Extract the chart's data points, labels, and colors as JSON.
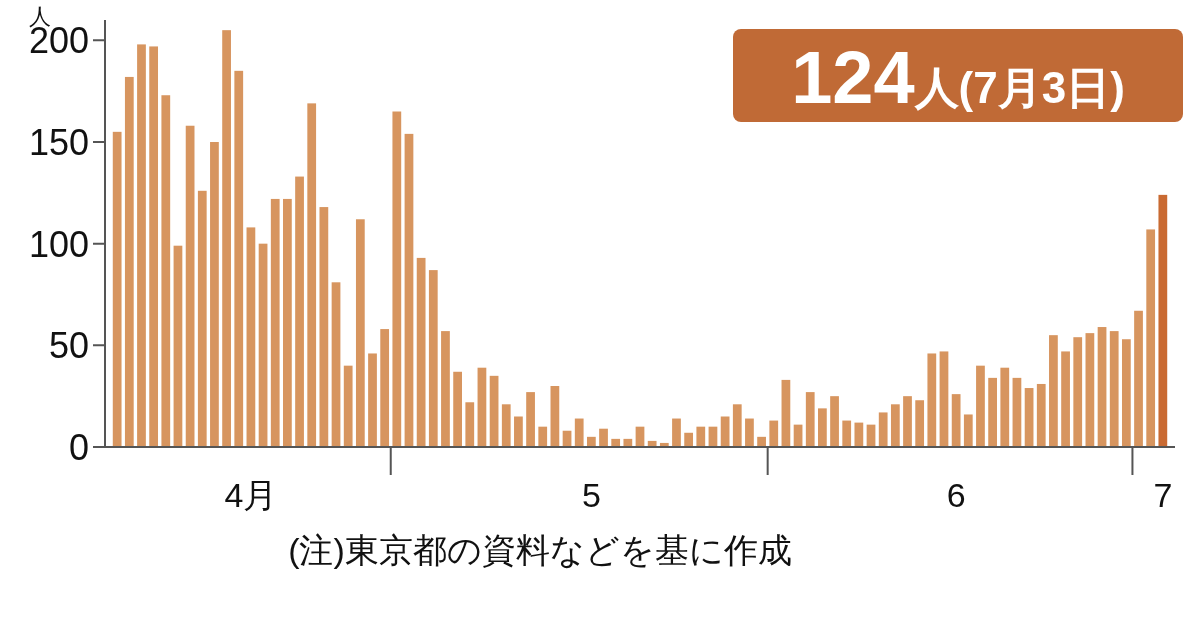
{
  "chart_data": {
    "type": "bar",
    "ylabel": "人",
    "x": [
      "--04-08",
      "--04-09",
      "--04-10",
      "--04-11",
      "--04-12",
      "--04-13",
      "--04-14",
      "--04-15",
      "--04-16",
      "--04-17",
      "--04-18",
      "--04-19",
      "--04-20",
      "--04-21",
      "--04-22",
      "--04-23",
      "--04-24",
      "--04-25",
      "--04-26",
      "--04-27",
      "--04-28",
      "--04-29",
      "--04-30",
      "--05-01",
      "--05-02",
      "--05-03",
      "--05-04",
      "--05-05",
      "--05-06",
      "--05-07",
      "--05-08",
      "--05-09",
      "--05-10",
      "--05-11",
      "--05-12",
      "--05-13",
      "--05-14",
      "--05-15",
      "--05-16",
      "--05-17",
      "--05-18",
      "--05-19",
      "--05-20",
      "--05-21",
      "--05-22",
      "--05-23",
      "--05-24",
      "--05-25",
      "--05-26",
      "--05-27",
      "--05-28",
      "--05-29",
      "--05-30",
      "--05-31",
      "--06-01",
      "--06-02",
      "--06-03",
      "--06-04",
      "--06-05",
      "--06-06",
      "--06-07",
      "--06-08",
      "--06-09",
      "--06-10",
      "--06-11",
      "--06-12",
      "--06-13",
      "--06-14",
      "--06-15",
      "--06-16",
      "--06-17",
      "--06-18",
      "--06-19",
      "--06-20",
      "--06-21",
      "--06-22",
      "--06-23",
      "--06-24",
      "--06-25",
      "--06-26",
      "--06-27",
      "--06-28",
      "--06-29",
      "--06-30",
      "--07-01",
      "--07-02",
      "--07-03"
    ],
    "values": [
      155,
      182,
      198,
      197,
      173,
      99,
      158,
      126,
      150,
      205,
      185,
      108,
      100,
      122,
      122,
      133,
      169,
      118,
      81,
      40,
      112,
      46,
      58,
      165,
      154,
      93,
      87,
      57,
      37,
      22,
      39,
      35,
      21,
      15,
      27,
      10,
      30,
      8,
      14,
      5,
      9,
      4,
      4,
      10,
      3,
      2,
      14,
      7,
      10,
      10,
      15,
      21,
      14,
      5,
      13,
      33,
      11,
      27,
      19,
      25,
      13,
      12,
      11,
      17,
      21,
      25,
      23,
      46,
      47,
      26,
      16,
      40,
      34,
      39,
      34,
      29,
      31,
      55,
      47,
      54,
      56,
      59,
      57,
      53,
      67,
      107,
      124
    ],
    "colors": [
      "#d7955f",
      "#d7955f",
      "#d7955f",
      "#d7955f",
      "#d7955f",
      "#d7955f",
      "#d7955f",
      "#d7955f",
      "#d7955f",
      "#d7955f",
      "#d7955f",
      "#d7955f",
      "#d7955f",
      "#d7955f",
      "#d7955f",
      "#d7955f",
      "#d7955f",
      "#d7955f",
      "#d7955f",
      "#d7955f",
      "#d7955f",
      "#d7955f",
      "#d7955f",
      "#d7955f",
      "#d7955f",
      "#d7955f",
      "#d7955f",
      "#d7955f",
      "#d7955f",
      "#d7955f",
      "#d7955f",
      "#d7955f",
      "#d7955f",
      "#d7955f",
      "#d7955f",
      "#d7955f",
      "#d7955f",
      "#d7955f",
      "#d7955f",
      "#d7955f",
      "#d7955f",
      "#d7955f",
      "#d7955f",
      "#d7955f",
      "#d7955f",
      "#d7955f",
      "#d7955f",
      "#d7955f",
      "#d7955f",
      "#d7955f",
      "#d7955f",
      "#d7955f",
      "#d7955f",
      "#d7955f",
      "#d7955f",
      "#d7955f",
      "#d7955f",
      "#d7955f",
      "#d7955f",
      "#d7955f",
      "#d7955f",
      "#d7955f",
      "#d7955f",
      "#d7955f",
      "#d7955f",
      "#d7955f",
      "#d7955f",
      "#d7955f",
      "#d7955f",
      "#d7955f",
      "#d7955f",
      "#d7955f",
      "#d7955f",
      "#d7955f",
      "#d7955f",
      "#d7955f",
      "#d7955f",
      "#d7955f",
      "#d7955f",
      "#d7955f",
      "#d7955f",
      "#d7955f",
      "#d7955f",
      "#d7955f",
      "#d7955f",
      "#d7955f",
      "#c96a32"
    ],
    "xlim": [
      "--04-07",
      "--07-04"
    ],
    "xticks": [
      {
        "value": "--04-19",
        "label": "4月"
      },
      {
        "value": "--05-17",
        "label": "5"
      },
      {
        "value": "--06-16",
        "label": "6"
      },
      {
        "value": "--07-03",
        "label": "7"
      }
    ],
    "ylim": [
      0,
      210
    ],
    "yticks": [
      0,
      50,
      100,
      150,
      200
    ],
    "grid": false,
    "annotations": [
      "124人(7月3日)",
      "(注)東京都の資料などを基に作成"
    ]
  }
}
